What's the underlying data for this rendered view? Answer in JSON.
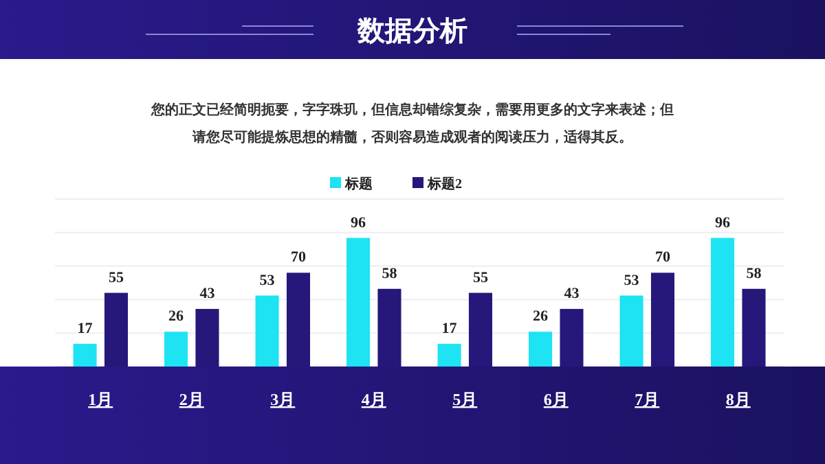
{
  "chart_data": {
    "type": "bar",
    "title": "数据分析",
    "subtitle": "您的正文已经简明扼要，字字珠玑，但信息却错综复杂，需要用更多的文字来表述；但请您尽可能提炼思想的精髓，否则容易造成观者的阅读压力，适得其反。",
    "categories": [
      "1月",
      "2月",
      "3月",
      "4月",
      "5月",
      "6月",
      "7月",
      "8月"
    ],
    "series": [
      {
        "name": "标题",
        "color": "#1ee3f2",
        "values": [
          17,
          26,
          53,
          96,
          17,
          26,
          53,
          96
        ]
      },
      {
        "name": "标题2",
        "color": "#25187a",
        "values": [
          55,
          43,
          70,
          58,
          55,
          43,
          70,
          58
        ]
      }
    ],
    "ylim": [
      0,
      125
    ],
    "yticks": [
      {
        "value": 0,
        "label": null
      },
      {
        "value": 25,
        "label": null
      },
      {
        "value": 50,
        "label": null
      },
      {
        "value": 75,
        "label": null
      },
      {
        "value": 100,
        "label": null
      },
      {
        "value": 125,
        "label": null
      }
    ],
    "grid": "y",
    "legend": "top",
    "data_labels": true,
    "tick_labels": "x"
  }
}
